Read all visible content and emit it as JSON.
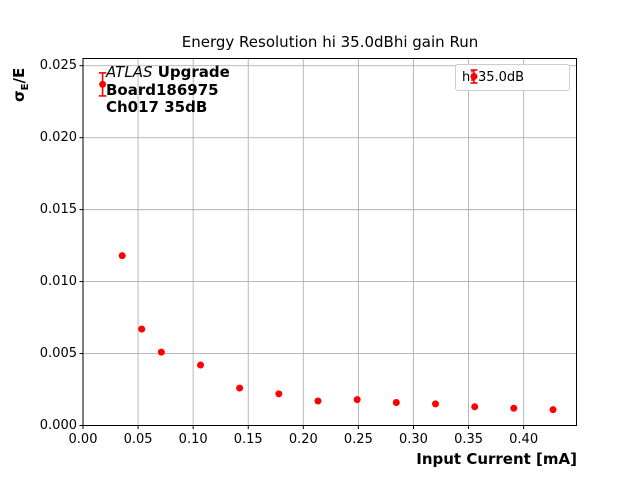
{
  "figure": {
    "title": "Energy Resolution hi 35.0dBhi gain Run"
  },
  "chart_data": {
    "type": "scatter",
    "title": "Energy Resolution hi 35.0dBhi gain Run",
    "xlabel": "Input Current [mA]",
    "ylabel": "σE/E",
    "ylabel_parts": {
      "sigma": "σ",
      "sub": "E",
      "rest": "/E"
    },
    "xlim": [
      0,
      0.448
    ],
    "ylim": [
      0,
      0.0255
    ],
    "grid": true,
    "legend_position": "upper right",
    "xticks": [
      "0.00",
      "0.05",
      "0.10",
      "0.15",
      "0.20",
      "0.25",
      "0.30",
      "0.35",
      "0.40"
    ],
    "xtick_values": [
      0.0,
      0.05,
      0.1,
      0.15,
      0.2,
      0.25,
      0.3,
      0.35,
      0.4
    ],
    "yticks": [
      "0.000",
      "0.005",
      "0.010",
      "0.015",
      "0.020",
      "0.025"
    ],
    "ytick_values": [
      0.0,
      0.005,
      0.01,
      0.015,
      0.02,
      0.025
    ],
    "series": [
      {
        "name": "hi 35.0dB",
        "color": "#ff0000",
        "marker": "circle",
        "x": [
          0.0178,
          0.0356,
          0.0533,
          0.0711,
          0.1067,
          0.1422,
          0.1778,
          0.2133,
          0.2489,
          0.2844,
          0.32,
          0.3556,
          0.3911,
          0.4267
        ],
        "y": [
          0.0237,
          0.0118,
          0.0067,
          0.0051,
          0.0042,
          0.0026,
          0.0022,
          0.0017,
          0.0018,
          0.0016,
          0.0015,
          0.0013,
          0.0012,
          0.0011
        ],
        "yerr": [
          0.0008,
          0,
          0,
          0,
          0,
          0,
          0,
          0,
          0,
          0,
          0,
          0,
          0,
          0
        ]
      }
    ],
    "annotation": {
      "line1_italic": "ATLAS",
      "line1_bold": "Upgrade",
      "line2": "Board186975",
      "line3": "Ch017 35dB"
    }
  },
  "colors": {
    "marker": "#ff0000",
    "grid": "#b0b0b0",
    "spine": "#000000",
    "legend_border": "#cccccc",
    "background": "#ffffff"
  }
}
